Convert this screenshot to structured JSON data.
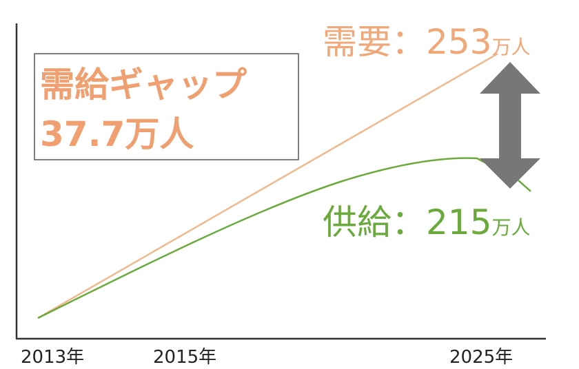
{
  "gap_box": {
    "title": "需給ギャップ",
    "value": "37.7万人"
  },
  "demand": {
    "label": "需要：253",
    "unit": "万人"
  },
  "supply": {
    "label": "供給：215",
    "unit": "万人"
  },
  "x_labels": [
    "2013年",
    "2015年",
    "2025年"
  ]
}
